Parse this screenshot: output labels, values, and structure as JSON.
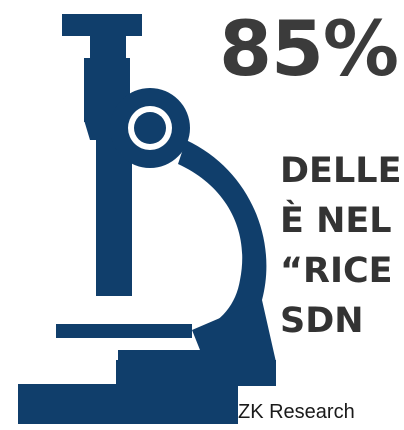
{
  "colors": {
    "microscope": "#103e6b",
    "stat_text": "#3b3b3b",
    "source_text": "#1a1a1a"
  },
  "icon": "microscope-icon",
  "stat": {
    "value": "85%",
    "lines": [
      "DELLE",
      "È NEL",
      "“RICE",
      "SDN"
    ]
  },
  "source": "ZK Research"
}
